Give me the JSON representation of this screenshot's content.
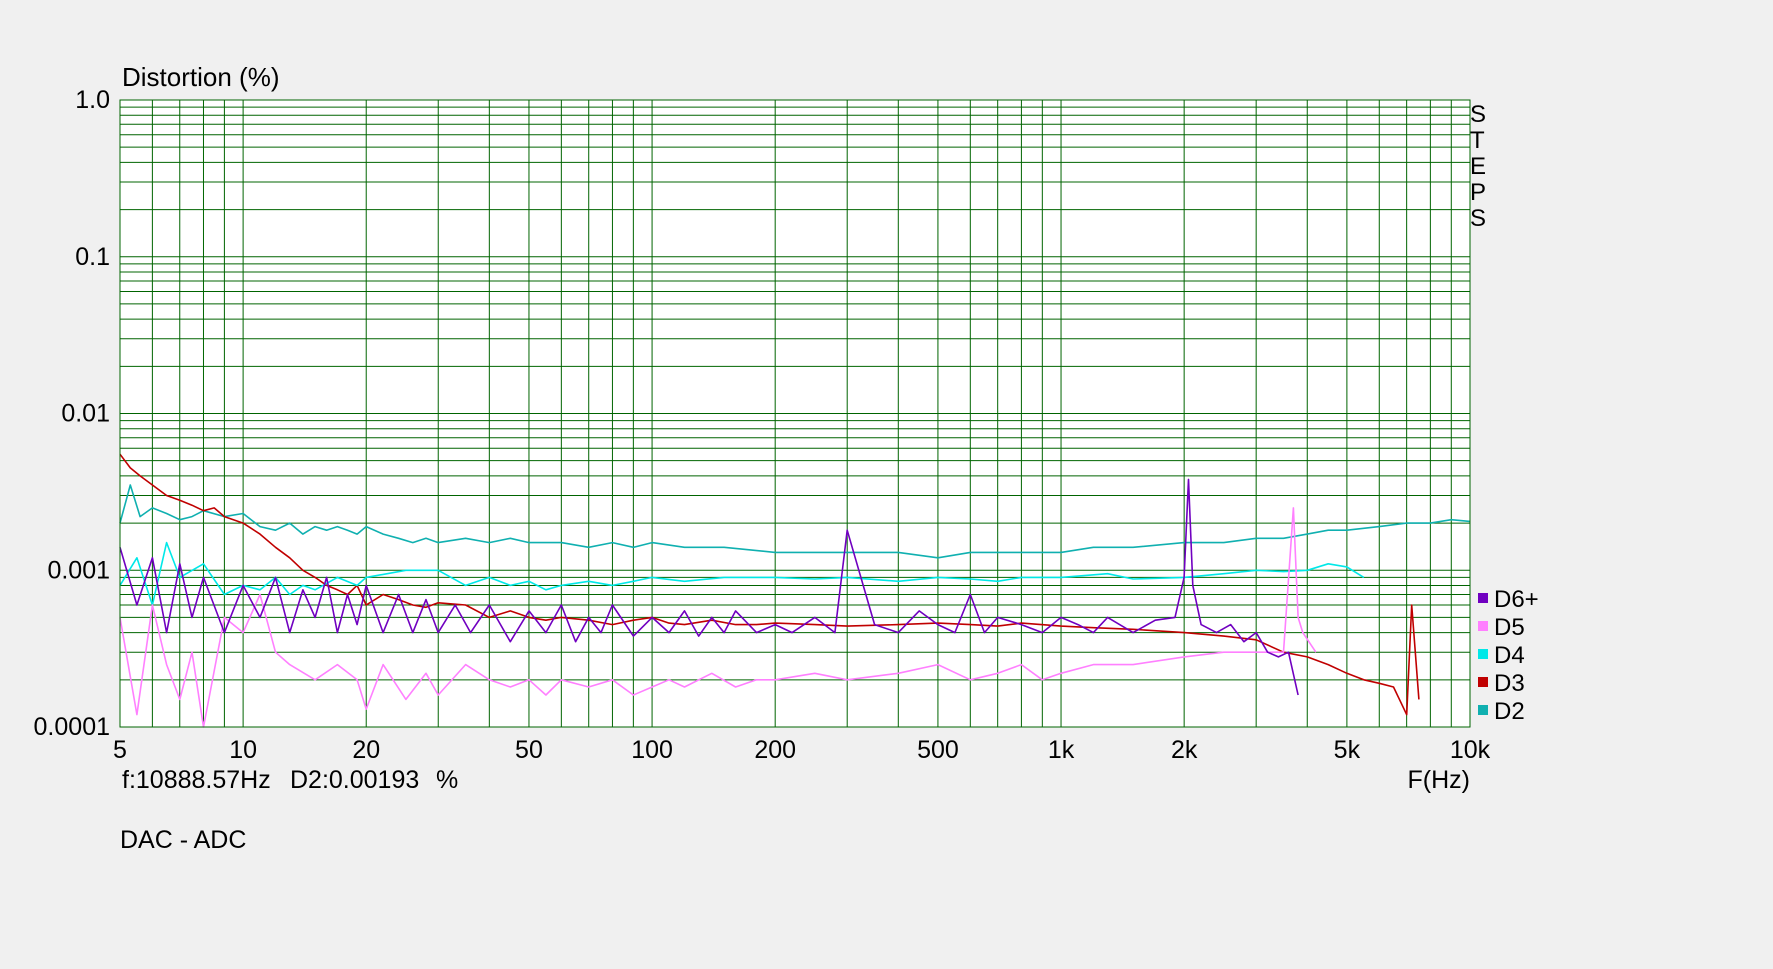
{
  "chart_data": {
    "type": "line",
    "title": "Distortion (%)",
    "xlabel": "F(Hz)",
    "ylabel": "Distortion (%)",
    "x_scale": "log",
    "y_scale": "log",
    "xlim": [
      5,
      10000
    ],
    "ylim": [
      0.0001,
      1.0
    ],
    "grid": true,
    "legend_position": "right",
    "side_label": "STEPS",
    "y_ticks": [
      "1.0",
      "0.1",
      "0.01",
      "0.001",
      "0.0001"
    ],
    "x_ticks": [
      {
        "value": 5,
        "label": "5"
      },
      {
        "value": 10,
        "label": "10"
      },
      {
        "value": 20,
        "label": "20"
      },
      {
        "value": 50,
        "label": "50"
      },
      {
        "value": 100,
        "label": "100"
      },
      {
        "value": 200,
        "label": "200"
      },
      {
        "value": 500,
        "label": "500"
      },
      {
        "value": 1000,
        "label": "1k"
      },
      {
        "value": 2000,
        "label": "2k"
      },
      {
        "value": 5000,
        "label": "5k"
      },
      {
        "value": 10000,
        "label": "10k"
      }
    ],
    "series": [
      {
        "name": "D6+",
        "color": "#7000c0",
        "x": [
          5,
          5.5,
          6,
          6.5,
          7,
          7.5,
          8,
          9,
          10,
          11,
          12,
          13,
          14,
          15,
          16,
          17,
          18,
          19,
          20,
          22,
          24,
          26,
          28,
          30,
          33,
          36,
          40,
          45,
          50,
          55,
          60,
          65,
          70,
          75,
          80,
          90,
          100,
          110,
          120,
          130,
          140,
          150,
          160,
          180,
          200,
          220,
          250,
          280,
          300,
          350,
          400,
          450,
          500,
          550,
          600,
          650,
          700,
          800,
          900,
          1000,
          1100,
          1200,
          1300,
          1500,
          1700,
          1900,
          2000,
          2050,
          2100,
          2200,
          2400,
          2600,
          2800,
          3000,
          3200,
          3400,
          3600,
          3800
        ],
        "y": [
          0.0014,
          0.0006,
          0.0012,
          0.0004,
          0.0011,
          0.0005,
          0.0009,
          0.0004,
          0.0008,
          0.0005,
          0.0009,
          0.0004,
          0.00075,
          0.0005,
          0.0009,
          0.0004,
          0.0007,
          0.00045,
          0.0008,
          0.0004,
          0.0007,
          0.0004,
          0.00065,
          0.0004,
          0.0006,
          0.0004,
          0.0006,
          0.00035,
          0.00055,
          0.0004,
          0.0006,
          0.00035,
          0.0005,
          0.0004,
          0.0006,
          0.00038,
          0.0005,
          0.0004,
          0.00055,
          0.00038,
          0.0005,
          0.0004,
          0.00055,
          0.0004,
          0.00045,
          0.0004,
          0.0005,
          0.0004,
          0.0018,
          0.00045,
          0.0004,
          0.00055,
          0.00045,
          0.0004,
          0.0007,
          0.0004,
          0.0005,
          0.00045,
          0.0004,
          0.0005,
          0.00045,
          0.0004,
          0.0005,
          0.0004,
          0.00048,
          0.0005,
          0.0009,
          0.0038,
          0.0008,
          0.00045,
          0.0004,
          0.00045,
          0.00035,
          0.0004,
          0.0003,
          0.00028,
          0.0003,
          0.00016
        ]
      },
      {
        "name": "D5",
        "color": "#ff80ff",
        "x": [
          5,
          5.5,
          6,
          6.5,
          7,
          7.5,
          8,
          9,
          10,
          11,
          12,
          13,
          15,
          17,
          19,
          20,
          22,
          25,
          28,
          30,
          35,
          40,
          45,
          50,
          55,
          60,
          70,
          80,
          90,
          100,
          110,
          120,
          140,
          160,
          180,
          200,
          250,
          300,
          400,
          500,
          600,
          700,
          800,
          900,
          1000,
          1200,
          1500,
          2000,
          2500,
          3000,
          3500,
          3700,
          3800,
          3900,
          4200
        ],
        "y": [
          0.0005,
          0.00012,
          0.0006,
          0.00025,
          0.00015,
          0.0003,
          0.0001,
          0.0005,
          0.0004,
          0.0007,
          0.0003,
          0.00025,
          0.0002,
          0.00025,
          0.0002,
          0.00013,
          0.00025,
          0.00015,
          0.00022,
          0.00016,
          0.00025,
          0.0002,
          0.00018,
          0.0002,
          0.00016,
          0.0002,
          0.00018,
          0.0002,
          0.00016,
          0.00018,
          0.0002,
          0.00018,
          0.00022,
          0.00018,
          0.0002,
          0.0002,
          0.00022,
          0.0002,
          0.00022,
          0.00025,
          0.0002,
          0.00022,
          0.00025,
          0.0002,
          0.00022,
          0.00025,
          0.00025,
          0.00028,
          0.0003,
          0.0003,
          0.0003,
          0.0025,
          0.0005,
          0.0004,
          0.0003
        ]
      },
      {
        "name": "D4",
        "color": "#00e8e8",
        "x": [
          5,
          5.5,
          6,
          6.5,
          7,
          8,
          9,
          10,
          11,
          12,
          13,
          14,
          15,
          17,
          19,
          20,
          25,
          30,
          35,
          40,
          45,
          50,
          55,
          60,
          70,
          80,
          90,
          100,
          120,
          150,
          200,
          250,
          300,
          400,
          500,
          600,
          700,
          800,
          1000,
          1300,
          1500,
          2000,
          2500,
          3000,
          3500,
          4000,
          4500,
          5000,
          5500
        ],
        "y": [
          0.0008,
          0.0012,
          0.0006,
          0.0015,
          0.0009,
          0.0011,
          0.0007,
          0.0008,
          0.00075,
          0.0009,
          0.0007,
          0.0008,
          0.00075,
          0.0009,
          0.0008,
          0.0009,
          0.001,
          0.001,
          0.0008,
          0.0009,
          0.0008,
          0.00085,
          0.00075,
          0.0008,
          0.00085,
          0.0008,
          0.00085,
          0.0009,
          0.00085,
          0.0009,
          0.0009,
          0.00088,
          0.0009,
          0.00085,
          0.0009,
          0.00088,
          0.00085,
          0.0009,
          0.0009,
          0.00095,
          0.00088,
          0.0009,
          0.00095,
          0.001,
          0.00098,
          0.001,
          0.0011,
          0.00105,
          0.0009
        ]
      },
      {
        "name": "D3",
        "color": "#c00000",
        "x": [
          5,
          5.3,
          5.6,
          6,
          6.5,
          7,
          7.5,
          8,
          8.5,
          9,
          10,
          11,
          12,
          13,
          14,
          15,
          16,
          17,
          18,
          19,
          20,
          22,
          24,
          26,
          28,
          30,
          35,
          40,
          45,
          50,
          55,
          60,
          70,
          80,
          90,
          100,
          110,
          120,
          140,
          160,
          180,
          200,
          250,
          300,
          400,
          500,
          600,
          700,
          800,
          1000,
          1200,
          1500,
          2000,
          2500,
          3000,
          3500,
          4000,
          4500,
          5000,
          5500,
          6000,
          6500,
          7000,
          7200,
          7500
        ],
        "y": [
          0.0055,
          0.0045,
          0.004,
          0.0035,
          0.003,
          0.0028,
          0.0026,
          0.0024,
          0.0025,
          0.0022,
          0.002,
          0.0017,
          0.0014,
          0.0012,
          0.001,
          0.0009,
          0.0008,
          0.00075,
          0.0007,
          0.0008,
          0.0006,
          0.0007,
          0.00065,
          0.0006,
          0.00058,
          0.00062,
          0.0006,
          0.0005,
          0.00055,
          0.0005,
          0.00048,
          0.0005,
          0.00048,
          0.00045,
          0.00048,
          0.0005,
          0.00046,
          0.00045,
          0.00048,
          0.00045,
          0.00045,
          0.00046,
          0.00045,
          0.00044,
          0.00045,
          0.00046,
          0.00045,
          0.00044,
          0.00046,
          0.00044,
          0.00043,
          0.00042,
          0.0004,
          0.00038,
          0.00036,
          0.0003,
          0.00028,
          0.00025,
          0.00022,
          0.0002,
          0.00019,
          0.00018,
          0.00012,
          0.0006,
          0.00015
        ]
      },
      {
        "name": "D2",
        "color": "#10b0b0",
        "x": [
          5,
          5.3,
          5.6,
          6,
          6.5,
          7,
          7.5,
          8,
          9,
          10,
          11,
          12,
          13,
          14,
          15,
          16,
          17,
          18,
          19,
          20,
          22,
          24,
          26,
          28,
          30,
          35,
          40,
          45,
          50,
          55,
          60,
          70,
          80,
          90,
          100,
          120,
          150,
          200,
          250,
          300,
          400,
          500,
          600,
          700,
          800,
          1000,
          1200,
          1500,
          2000,
          2500,
          3000,
          3500,
          4000,
          4500,
          5000,
          6000,
          7000,
          8000,
          9000,
          10000
        ],
        "y": [
          0.002,
          0.0035,
          0.0022,
          0.0025,
          0.0023,
          0.0021,
          0.0022,
          0.0024,
          0.0022,
          0.0023,
          0.0019,
          0.0018,
          0.002,
          0.0017,
          0.0019,
          0.0018,
          0.0019,
          0.0018,
          0.0017,
          0.0019,
          0.0017,
          0.0016,
          0.0015,
          0.0016,
          0.0015,
          0.0016,
          0.0015,
          0.0016,
          0.0015,
          0.0015,
          0.0015,
          0.0014,
          0.0015,
          0.0014,
          0.0015,
          0.0014,
          0.0014,
          0.0013,
          0.0013,
          0.0013,
          0.0013,
          0.0012,
          0.0013,
          0.0013,
          0.0013,
          0.0013,
          0.0014,
          0.0014,
          0.0015,
          0.0015,
          0.0016,
          0.0016,
          0.0017,
          0.0018,
          0.0018,
          0.0019,
          0.002,
          0.002,
          0.0021,
          0.00205
        ]
      }
    ]
  },
  "status": {
    "cursor_freq": "f:10888.57Hz",
    "cursor_value": "D2:0.00193",
    "cursor_unit": "%"
  },
  "footer_label": "DAC - ADC"
}
